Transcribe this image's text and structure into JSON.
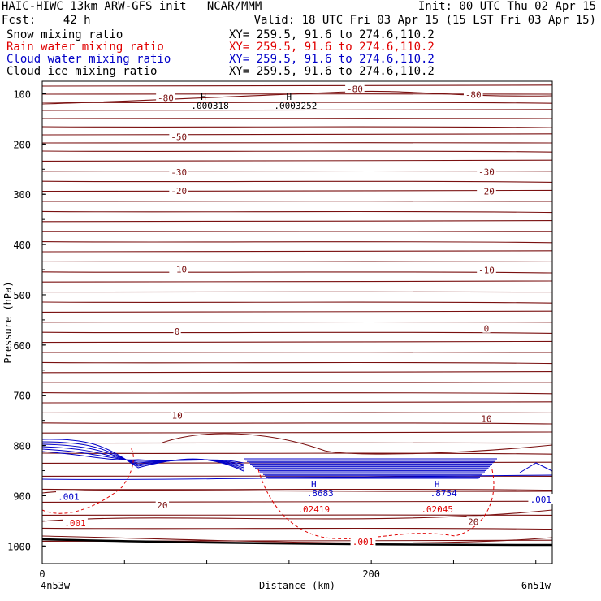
{
  "header": {
    "line1_left": "HAIC-HIWC 13km ARW-GFS init   NCAR/MMM",
    "line1_right": "Init: 00 UTC Thu 02 Apr 15",
    "line2_left": "Fcst:    42 h",
    "line2_right": "Valid: 18 UTC Fri 03 Apr 15 (15 LST Fri 03 Apr 15)"
  },
  "legend": [
    {
      "label": "Snow mixing ratio",
      "xy": "XY= 259.5, 91.6 to 274.6,110.2",
      "color": "#000000"
    },
    {
      "label": "Rain water mixing ratio",
      "xy": "XY= 259.5, 91.6 to 274.6,110.2",
      "color": "#e00000"
    },
    {
      "label": "Cloud water mixing ratio",
      "xy": "XY= 259.5, 91.6 to 274.6,110.2",
      "color": "#0000c8"
    },
    {
      "label": "Cloud ice mixing ratio",
      "xy": "XY= 259.5, 91.6 to 274.6,110.2",
      "color": "#000000"
    }
  ],
  "chart_data": {
    "type": "contour",
    "ylabel": "Pressure (hPa)",
    "xlabel": "Distance (km)",
    "x_start_label": "4n53w",
    "x_end_label": "6n51w",
    "x_ticks": [
      0,
      200
    ],
    "xlim": [
      0,
      310
    ],
    "y_ticks": [
      100,
      200,
      300,
      400,
      500,
      600,
      700,
      800,
      900,
      1000
    ],
    "ylim": [
      75,
      1035
    ],
    "temperature_labels": [
      {
        "text": "-80",
        "x": 75,
        "p": 110
      },
      {
        "text": "-80",
        "x": 190,
        "p": 92
      },
      {
        "text": "-80",
        "x": 262,
        "p": 103
      },
      {
        "text": "-50",
        "x": 83,
        "p": 187
      },
      {
        "text": "-30",
        "x": 83,
        "p": 258
      },
      {
        "text": "-30",
        "x": 270,
        "p": 257
      },
      {
        "text": "-20",
        "x": 83,
        "p": 295
      },
      {
        "text": "-20",
        "x": 270,
        "p": 296
      },
      {
        "text": "-10",
        "x": 83,
        "p": 451
      },
      {
        "text": "-10",
        "x": 270,
        "p": 452
      },
      {
        "text": "0",
        "x": 82,
        "p": 574
      },
      {
        "text": "0",
        "x": 270,
        "p": 569
      },
      {
        "text": "10",
        "x": 82,
        "p": 742
      },
      {
        "text": "10",
        "x": 270,
        "p": 748
      },
      {
        "text": "20",
        "x": 73,
        "p": 920
      },
      {
        "text": "20",
        "x": 262,
        "p": 953
      }
    ],
    "cloud_water_labels": [
      {
        "text": ".001",
        "x": 16,
        "p": 903
      },
      {
        "text": ".001",
        "x": 303,
        "p": 909
      }
    ],
    "rain_labels": [
      {
        "text": ".001",
        "x": 20,
        "p": 956
      },
      {
        "text": ".001",
        "x": 195,
        "p": 993
      }
    ],
    "extrema": [
      {
        "mark": "H",
        "value": ".000318",
        "x": 98,
        "p": 112,
        "color": "#000000"
      },
      {
        "mark": "H",
        "value": ".0003252",
        "x": 150,
        "p": 112,
        "color": "#000000"
      },
      {
        "mark": "H",
        "value": ".8683",
        "x": 165,
        "p": 883,
        "color": "#0000c8"
      },
      {
        "mark": "H",
        "value": ".8754",
        "x": 240,
        "p": 883,
        "color": "#0000c8"
      }
    ],
    "rain_max_labels": [
      {
        "text": ".02419",
        "x": 165,
        "p": 928
      },
      {
        "text": ".02045",
        "x": 240,
        "p": 928
      }
    ]
  }
}
